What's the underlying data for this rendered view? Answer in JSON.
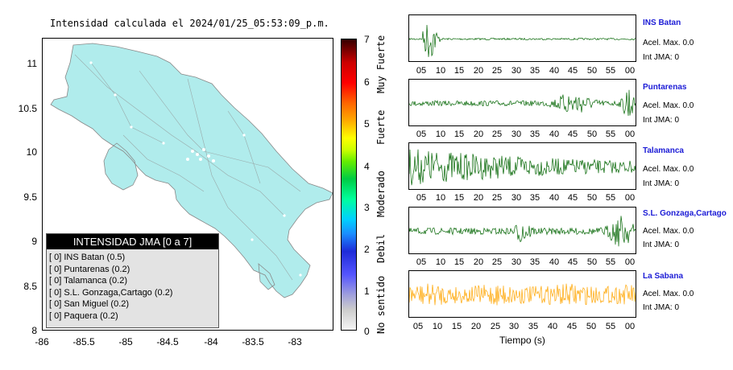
{
  "map": {
    "title": "Intensidad calculada el 2024/01/25_05:53:09_p.m.",
    "y_ticks": [
      "11",
      "10.5",
      "10",
      "9.5",
      "9",
      "8.5",
      "8"
    ],
    "x_ticks": [
      "-86",
      "-85.5",
      "-85",
      "-84.5",
      "-84",
      "-83.5",
      "-83"
    ],
    "land_color": "#b0ecec"
  },
  "legend": {
    "title": "INTENSIDAD JMA [0 a 7]",
    "items": [
      {
        "label": "[ 0]  INS Batan (0.5)"
      },
      {
        "label": "[ 0]  Puntarenas (0.2)"
      },
      {
        "label": "[ 0]  Talamanca (0.2)"
      },
      {
        "label": "[ 0]  S.L. Gonzaga,Cartago (0.2)"
      },
      {
        "label": "[ 0]  San Miguel (0.2)"
      },
      {
        "label": "[ 0]  Paquera (0.2)"
      }
    ]
  },
  "colorbar": {
    "numbers": [
      "7",
      "6",
      "5",
      "4",
      "3",
      "2",
      "1",
      "0"
    ],
    "labels": [
      "Muy Fuerte",
      "Fuerte",
      "Moderado",
      "Debil",
      "No sentido"
    ]
  },
  "stations": [
    {
      "name": "INS Batan",
      "accel": "Acel. Max. 0.0",
      "int": "Int JMA: 0",
      "color": "#006400"
    },
    {
      "name": "Puntarenas",
      "accel": "Acel. Max. 0.0",
      "int": "Int JMA: 0",
      "color": "#006400"
    },
    {
      "name": "Talamanca",
      "accel": "Acel. Max. 0.0",
      "int": "Int JMA: 0",
      "color": "#006400"
    },
    {
      "name": "S.L. Gonzaga,Cartago",
      "accel": "Acel. Max. 0.0",
      "int": "Int JMA: 0",
      "color": "#006400"
    },
    {
      "name": "La Sabana",
      "accel": "Acel. Max. 0.0",
      "int": "Int JMA: 0",
      "color": "#ffa500"
    }
  ],
  "time_ticks": [
    "05",
    "10",
    "15",
    "20",
    "25",
    "30",
    "35",
    "40",
    "45",
    "50",
    "55",
    "00"
  ],
  "time_ticks_last": [
    "05",
    "10",
    "15",
    "20",
    "25",
    "30",
    "35",
    "40",
    "45",
    "50",
    "55",
    "00"
  ],
  "xlabel": "Tiempo (s)"
}
